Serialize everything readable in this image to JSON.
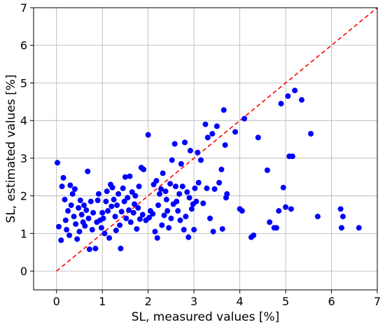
{
  "chart_data": {
    "type": "scatter",
    "xlabel": "SL, measured values [%]",
    "ylabel": "SL, estimated values [%]",
    "xlim": [
      -0.5,
      7
    ],
    "ylim": [
      -0.5,
      7
    ],
    "xticks": [
      0,
      1,
      2,
      3,
      4,
      5,
      6,
      7
    ],
    "yticks": [
      0,
      1,
      2,
      3,
      4,
      5,
      6,
      7
    ],
    "grid": true,
    "point_color": "#0000ff",
    "reference_line": {
      "x": [
        0,
        7
      ],
      "y": [
        0,
        7
      ],
      "color": "#ff0000",
      "style": "dashed"
    },
    "points": [
      [
        0.02,
        2.88
      ],
      [
        0.05,
        1.18
      ],
      [
        0.1,
        0.82
      ],
      [
        0.12,
        2.25
      ],
      [
        0.15,
        2.48
      ],
      [
        0.18,
        1.9
      ],
      [
        0.2,
        1.35
      ],
      [
        0.22,
        1.1
      ],
      [
        0.25,
        1.6
      ],
      [
        0.28,
        0.95
      ],
      [
        0.3,
        2.28
      ],
      [
        0.32,
        1.75
      ],
      [
        0.35,
        2.05
      ],
      [
        0.38,
        1.45
      ],
      [
        0.4,
        2.18
      ],
      [
        0.42,
        1.25
      ],
      [
        0.45,
        0.85
      ],
      [
        0.48,
        1.68
      ],
      [
        0.5,
        1.05
      ],
      [
        0.52,
        1.88
      ],
      [
        0.55,
        1.5
      ],
      [
        0.58,
        1.3
      ],
      [
        0.6,
        1.75
      ],
      [
        0.62,
        1.2
      ],
      [
        0.65,
        1.62
      ],
      [
        0.68,
        2.65
      ],
      [
        0.7,
        1.4
      ],
      [
        0.72,
        0.58
      ],
      [
        0.75,
        1.85
      ],
      [
        0.78,
        1.1
      ],
      [
        0.8,
        1.55
      ],
      [
        0.85,
        0.6
      ],
      [
        0.88,
        1.3
      ],
      [
        0.9,
        1.88
      ],
      [
        0.92,
        2.05
      ],
      [
        0.95,
        1.35
      ],
      [
        0.98,
        1.15
      ],
      [
        1.0,
        1.55
      ],
      [
        1.02,
        1.4
      ],
      [
        1.05,
        1.0
      ],
      [
        1.08,
        1.85
      ],
      [
        1.1,
        2.12
      ],
      [
        1.12,
        1.6
      ],
      [
        1.15,
        0.88
      ],
      [
        1.18,
        2.3
      ],
      [
        1.2,
        1.72
      ],
      [
        1.22,
        2.22
      ],
      [
        1.25,
        1.9
      ],
      [
        1.28,
        1.45
      ],
      [
        1.3,
        1.08
      ],
      [
        1.32,
        1.75
      ],
      [
        1.35,
        2.05
      ],
      [
        1.38,
        1.22
      ],
      [
        1.4,
        0.6
      ],
      [
        1.42,
        1.58
      ],
      [
        1.45,
        2.2
      ],
      [
        1.48,
        1.85
      ],
      [
        1.5,
        2.5
      ],
      [
        1.52,
        1.4
      ],
      [
        1.55,
        1.95
      ],
      [
        1.58,
        1.62
      ],
      [
        1.6,
        2.52
      ],
      [
        1.62,
        1.3
      ],
      [
        1.65,
        2.1
      ],
      [
        1.68,
        1.55
      ],
      [
        1.7,
        1.78
      ],
      [
        1.72,
        2.0
      ],
      [
        1.75,
        1.12
      ],
      [
        1.78,
        1.68
      ],
      [
        1.8,
        2.25
      ],
      [
        1.82,
        1.38
      ],
      [
        1.85,
        2.75
      ],
      [
        1.88,
        1.5
      ],
      [
        1.9,
        2.7
      ],
      [
        1.95,
        1.35
      ],
      [
        2.0,
        3.62
      ],
      [
        2.02,
        1.42
      ],
      [
        2.05,
        1.6
      ],
      [
        2.1,
        1.52
      ],
      [
        2.12,
        2.3
      ],
      [
        2.15,
        1.05
      ],
      [
        2.18,
        2.4
      ],
      [
        2.2,
        0.88
      ],
      [
        2.22,
        1.75
      ],
      [
        2.25,
        2.05
      ],
      [
        2.28,
        2.18
      ],
      [
        2.3,
        1.22
      ],
      [
        2.32,
        2.6
      ],
      [
        2.35,
        1.48
      ],
      [
        2.38,
        2.12
      ],
      [
        2.4,
        1.9
      ],
      [
        2.42,
        1.6
      ],
      [
        2.45,
        1.15
      ],
      [
        2.48,
        2.32
      ],
      [
        2.5,
        1.4
      ],
      [
        2.52,
        2.95
      ],
      [
        2.55,
        1.78
      ],
      [
        2.58,
        3.38
      ],
      [
        2.6,
        2.25
      ],
      [
        2.62,
        1.85
      ],
      [
        2.65,
        1.6
      ],
      [
        2.68,
        2.05
      ],
      [
        2.7,
        1.35
      ],
      [
        2.72,
        2.85
      ],
      [
        2.75,
        2.25
      ],
      [
        2.78,
        1.1
      ],
      [
        2.8,
        3.42
      ],
      [
        2.82,
        1.45
      ],
      [
        2.85,
        2.1
      ],
      [
        2.88,
        0.9
      ],
      [
        2.9,
        1.95
      ],
      [
        2.92,
        3.2
      ],
      [
        2.95,
        1.65
      ],
      [
        2.98,
        1.78
      ],
      [
        3.0,
        1.1
      ],
      [
        3.02,
        2.2
      ],
      [
        3.05,
        1.85
      ],
      [
        3.08,
        3.15
      ],
      [
        3.1,
        2.35
      ],
      [
        3.15,
        2.95
      ],
      [
        3.2,
        1.8
      ],
      [
        3.25,
        3.9
      ],
      [
        3.28,
        2.2
      ],
      [
        3.3,
        3.55
      ],
      [
        3.35,
        1.4
      ],
      [
        3.4,
        3.65
      ],
      [
        3.42,
        1.05
      ],
      [
        3.45,
        2.18
      ],
      [
        3.5,
        3.85
      ],
      [
        3.55,
        2.35
      ],
      [
        3.6,
        2.7
      ],
      [
        3.62,
        1.12
      ],
      [
        3.65,
        4.28
      ],
      [
        3.68,
        3.35
      ],
      [
        3.7,
        1.95
      ],
      [
        3.72,
        2.05
      ],
      [
        3.9,
        3.7
      ],
      [
        4.0,
        1.65
      ],
      [
        4.05,
        1.6
      ],
      [
        4.1,
        4.05
      ],
      [
        4.25,
        0.9
      ],
      [
        4.3,
        0.95
      ],
      [
        4.4,
        3.55
      ],
      [
        4.6,
        2.68
      ],
      [
        4.65,
        1.3
      ],
      [
        4.75,
        1.15
      ],
      [
        4.8,
        1.15
      ],
      [
        4.85,
        1.6
      ],
      [
        4.9,
        4.45
      ],
      [
        4.95,
        2.22
      ],
      [
        5.0,
        1.7
      ],
      [
        5.05,
        4.65
      ],
      [
        5.08,
        3.05
      ],
      [
        5.12,
        1.65
      ],
      [
        5.15,
        3.05
      ],
      [
        5.2,
        4.8
      ],
      [
        5.35,
        4.55
      ],
      [
        5.55,
        3.65
      ],
      [
        5.7,
        1.45
      ],
      [
        6.2,
        1.65
      ],
      [
        6.22,
        1.15
      ],
      [
        6.25,
        1.45
      ],
      [
        6.6,
        1.15
      ]
    ]
  }
}
